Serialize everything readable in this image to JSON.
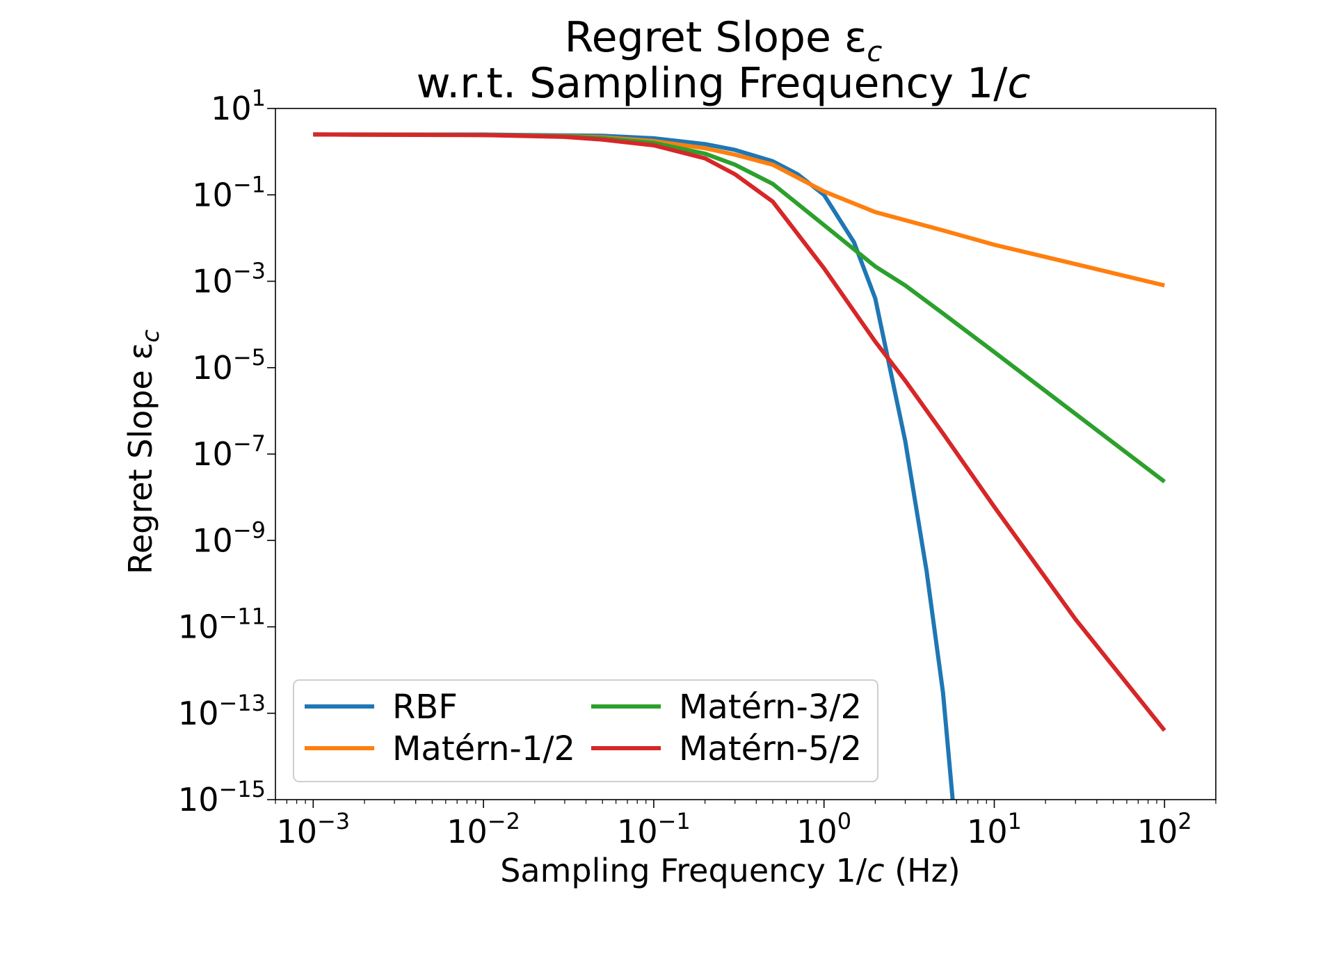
{
  "chart_data": {
    "type": "line",
    "title": "Regret Slope ε",
    "title_sub": "c",
    "subtitle_prefix": "w.r.t. Sampling Frequency 1/",
    "subtitle_var": "c",
    "xlabel_prefix": "Sampling Frequency 1/",
    "xlabel_var": "c",
    "xlabel_suffix": " (Hz)",
    "ylabel": "Regret Slope ε",
    "ylabel_sub": "c",
    "x_scale": "log",
    "y_scale": "log",
    "xlim": [
      0.0006,
      200
    ],
    "ylim": [
      1e-15,
      10
    ],
    "x_tick_exponents": [
      -3,
      -2,
      -1,
      0,
      1,
      2
    ],
    "y_tick_exponents": [
      1,
      -1,
      -3,
      -5,
      -7,
      -9,
      -11,
      -13,
      -15
    ],
    "tick_base": "10",
    "grid": false,
    "legend_placement": "lower-left",
    "legend_columns": 2,
    "series": [
      {
        "name": "RBF",
        "color": "#1f77b4",
        "x": [
          0.001,
          0.01,
          0.05,
          0.1,
          0.2,
          0.3,
          0.5,
          0.7,
          1,
          1.5,
          2,
          3,
          4,
          5,
          5.7
        ],
        "y": [
          2.5,
          2.49,
          2.33,
          2.04,
          1.5,
          1.1,
          0.6,
          0.3,
          0.1,
          0.008,
          0.0004,
          2e-07,
          2e-10,
          3e-13,
          1e-15
        ]
      },
      {
        "name": "Matérn-1/2",
        "color": "#ff7f0e",
        "x": [
          0.001,
          0.01,
          0.03,
          0.05,
          0.1,
          0.2,
          0.3,
          0.5,
          1,
          2,
          5,
          10,
          30,
          100
        ],
        "y": [
          2.5,
          2.44,
          2.3,
          2.15,
          1.75,
          1.2,
          0.85,
          0.5,
          0.12,
          0.04,
          0.015,
          0.007,
          0.0025,
          0.0008
        ]
      },
      {
        "name": "Matérn-3/2",
        "color": "#2ca02c",
        "x": [
          0.001,
          0.01,
          0.03,
          0.05,
          0.1,
          0.2,
          0.3,
          0.5,
          1,
          2,
          3,
          5,
          10,
          30,
          100
        ],
        "y": [
          2.5,
          2.44,
          2.25,
          2.05,
          1.6,
          0.9,
          0.5,
          0.18,
          0.02,
          0.0022,
          0.0008,
          0.00018,
          2.3e-05,
          8.5e-07,
          2.3e-08
        ]
      },
      {
        "name": "Matérn-5/2",
        "color": "#d62728",
        "x": [
          0.001,
          0.01,
          0.03,
          0.05,
          0.1,
          0.2,
          0.3,
          0.5,
          1,
          2,
          3,
          5,
          10,
          30,
          100
        ],
        "y": [
          2.5,
          2.42,
          2.2,
          1.9,
          1.4,
          0.7,
          0.3,
          0.07,
          0.002,
          4e-05,
          5e-06,
          3e-07,
          6e-09,
          1.5e-11,
          4e-14
        ]
      }
    ]
  }
}
